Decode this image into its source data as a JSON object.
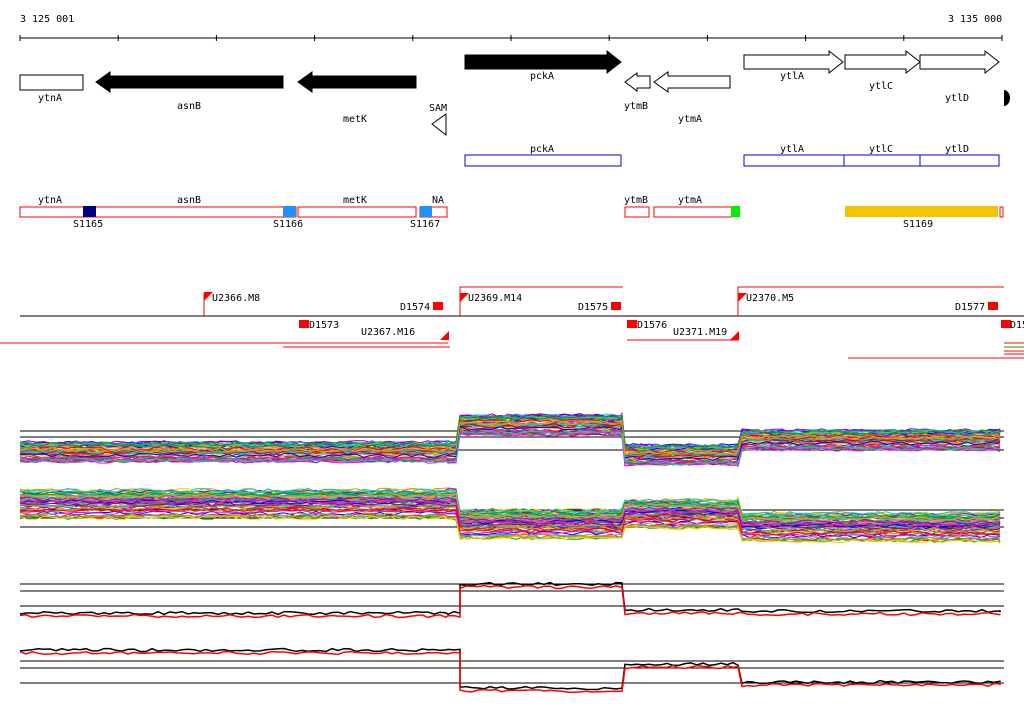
{
  "ruler": {
    "start_label": "3 125 001",
    "end_label": "3 135 000"
  },
  "genes": [
    {
      "label": "ytnA",
      "strand": "+",
      "fill": "white"
    },
    {
      "label": "asnB",
      "strand": "-",
      "fill": "black"
    },
    {
      "label": "metK",
      "strand": "-",
      "fill": "black"
    },
    {
      "label": "SAM",
      "strand": "-",
      "fill": "white"
    },
    {
      "label": "pckA",
      "strand": "+",
      "fill": "black"
    },
    {
      "label": "ytmB",
      "strand": "-",
      "fill": "white"
    },
    {
      "label": "ytmA",
      "strand": "-",
      "fill": "white"
    },
    {
      "label": "ytlA",
      "strand": "+",
      "fill": "white"
    },
    {
      "label": "ytlC",
      "strand": "+",
      "fill": "white"
    },
    {
      "label": "ytlD",
      "strand": "+",
      "fill": "white"
    }
  ],
  "blue_boxes": [
    "pckA",
    "ytlA",
    "ytlC",
    "ytlD"
  ],
  "segments": {
    "labels": [
      "ytnA",
      "asnB",
      "metK",
      "NA",
      "ytmB",
      "ytmA"
    ],
    "markers": [
      {
        "label": "S1165",
        "color": "#000080"
      },
      {
        "label": "S1166",
        "color": "#1e90ff"
      },
      {
        "label": "S1167",
        "color": "#1e90ff"
      },
      {
        "label": "S1169",
        "color": "#f5c400"
      }
    ],
    "green_marker_color": "#00ee00"
  },
  "transcription": {
    "labels": [
      "U2366.M8",
      "D1573",
      "U2367.M16",
      "D1574",
      "U2369.M14",
      "D1575",
      "D1576",
      "U2371.M19",
      "U2370.M5",
      "D1577",
      "D15"
    ]
  },
  "colors": {
    "track_red": "#ff0000",
    "box_blue": "#0000cc",
    "line_black": "#000000"
  }
}
